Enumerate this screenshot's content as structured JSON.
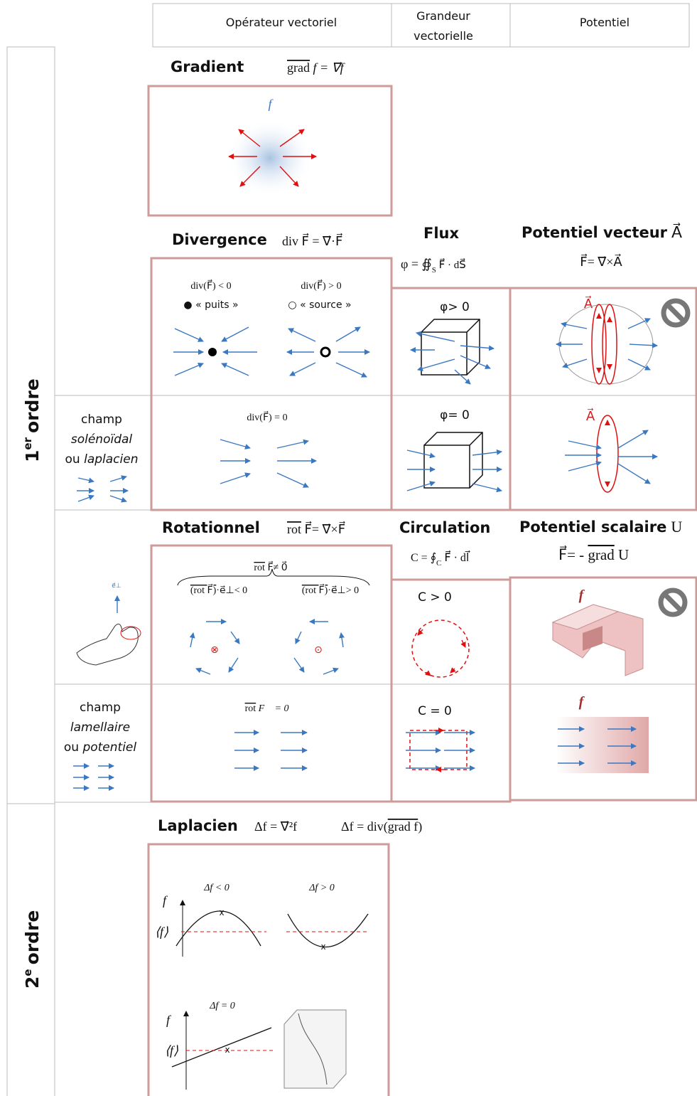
{
  "header": {
    "operator": "Opérateur vectoriel",
    "quantity": [
      "Grandeur",
      "vectorielle"
    ],
    "potential": "Potentiel"
  },
  "orders": [
    {
      "number": "1",
      "suffix": "er",
      "word": "ordre"
    },
    {
      "number": "2",
      "suffix": "e",
      "word": "ordre"
    }
  ],
  "gradient": {
    "title": "Gradient",
    "formula": {
      "operator": "grad",
      "rest": " f = ∇⃗f"
    },
    "field": "f"
  },
  "divergence": {
    "title": "Divergence",
    "formula": "div F⃗ = ∇⃗·F⃗",
    "negative": "div(F⃗) < 0",
    "sink": "« puits »",
    "positive": "div(F⃗) > 0",
    "source": "« source »",
    "zero": "div(F⃗) = 0"
  },
  "flux": {
    "title": "Flux",
    "formula": {
      "lhs": "φ = ∯",
      "sub": "S",
      "rhs": " F⃗ · dS⃗"
    },
    "positive": "φ> 0",
    "zero": "φ= 0"
  },
  "vector_potential": {
    "title": "Potentiel vecteur",
    "symbol": "A⃗",
    "formula": "F⃗= ∇⃗×A⃗",
    "label": "A⃗"
  },
  "solenoidal": {
    "line1": "champ",
    "line2": "solénoïdal",
    "line3a": "ou ",
    "line3b": "laplacien"
  },
  "rotational": {
    "title": "Rotationnel",
    "formula": {
      "operator": "rot",
      "rest": " F⃗= ∇⃗×F⃗"
    },
    "nonzero": {
      "operator": "rot",
      "rest": " F⃗≠ 0⃗"
    },
    "negative": {
      "operator": "(rot F⃗)",
      "rest": "·e⃗⊥< 0"
    },
    "positive": {
      "operator": "(rot F⃗)",
      "rest": "·e⃗⊥> 0"
    },
    "zero": {
      "operator": "rot",
      "rest": " F⃗ = 0⃗"
    },
    "axis_label": "e⃗⊥"
  },
  "circulation": {
    "title": "Circulation",
    "formula": {
      "lhs": "C = ∮",
      "sub": "C",
      "rhs": " F⃗ · dl⃗"
    },
    "positive": "C > 0",
    "zero": "C = 0"
  },
  "scalar_potential": {
    "title": "Potentiel scalaire",
    "symbol": "U",
    "formula": {
      "lhs": "F⃗= - ",
      "operator": "grad",
      "rhs": " U"
    },
    "label": "f"
  },
  "lamellar": {
    "line1": "champ",
    "line2": "lamellaire",
    "line3a": "ou ",
    "line3b": "potentiel"
  },
  "laplacian": {
    "title": "Laplacien",
    "formula1": "Δf = ∇⃗²f",
    "formula2": {
      "lhs": "Δf = div(",
      "operator": "grad f",
      "rhs": ")"
    },
    "negative": "Δf < 0",
    "positive": "Δf > 0",
    "zero": "Δf = 0",
    "axis": "f",
    "mean": "⟨f⟩"
  }
}
